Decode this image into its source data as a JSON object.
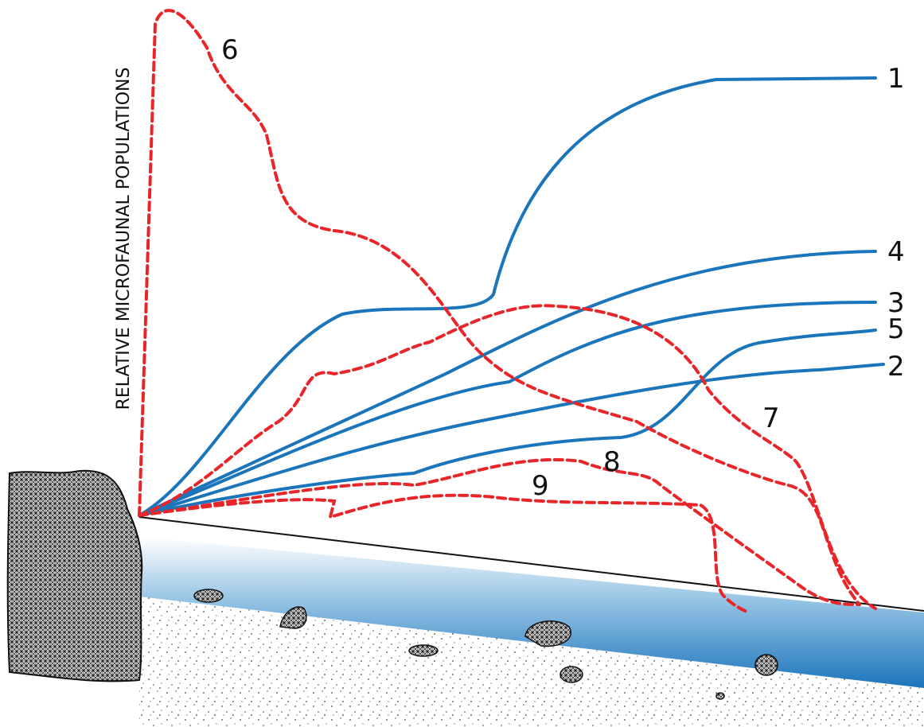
{
  "axis_label": "RELATIVE MICROFAUNAL POPULATIONS",
  "curves": [
    {
      "label": "1"
    },
    {
      "label": "2"
    },
    {
      "label": "3"
    },
    {
      "label": "4"
    },
    {
      "label": "5"
    },
    {
      "label": "6"
    },
    {
      "label": "7"
    },
    {
      "label": "8"
    },
    {
      "label": "9"
    }
  ]
}
